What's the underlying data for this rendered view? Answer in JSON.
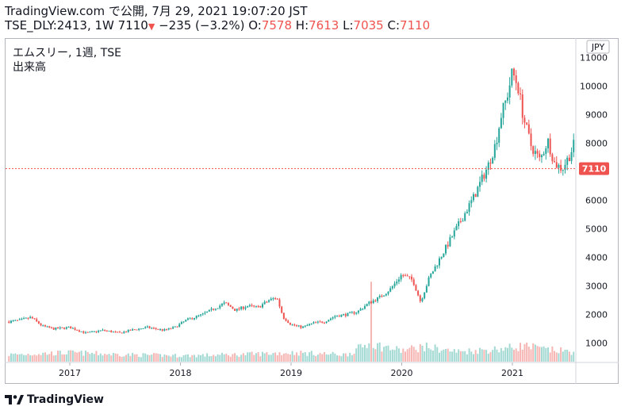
{
  "header": {
    "line1": "TradingView.com で公開, 7月 29, 2021 19:07:20 JST",
    "symbol_info": "TSE_DLY:2413, 1W 7110",
    "change": "−235 (−3.2%)",
    "open_label": "O:",
    "open": "7578",
    "high_label": "H:",
    "high": "7613",
    "low_label": "L:",
    "low": "7035",
    "close_label": "C:",
    "close": "7110"
  },
  "legend": {
    "title": "エムスリー, 1週, TSE",
    "volume": "出来高"
  },
  "logo": {
    "text": "TradingView",
    "icon": "tradingview-logo-icon"
  },
  "colors": {
    "up": "#26a69a",
    "down": "#ef5350",
    "vol_up": "#a3d9d3",
    "vol_down": "#f5b6b4",
    "last_price": "#ef5350"
  },
  "chart_data": {
    "type": "candlestick",
    "currency": "JPY",
    "y_ticks": [
      1000,
      2000,
      3000,
      4000,
      5000,
      6000,
      7000,
      8000,
      9000,
      10000,
      11000
    ],
    "y_tick_labels": [
      "1000",
      "2000",
      "3000",
      "4000",
      "5000",
      "6000",
      "7000",
      "8000",
      "9000",
      "10000",
      "11000"
    ],
    "ylim": [
      0,
      11000
    ],
    "x_ticks": [
      2017,
      2018,
      2019,
      2020,
      2021
    ],
    "x_tick_labels": [
      "2017",
      "2018",
      "2019",
      "2020",
      "2021"
    ],
    "xlim": [
      2016.45,
      2021.75
    ],
    "last_price": 7110,
    "last_price_label": "7110",
    "price_path": [
      [
        2016.45,
        1750
      ],
      [
        2016.55,
        1800
      ],
      [
        2016.65,
        1900
      ],
      [
        2016.75,
        1600
      ],
      [
        2016.85,
        1500
      ],
      [
        2017.0,
        1550
      ],
      [
        2017.15,
        1350
      ],
      [
        2017.3,
        1450
      ],
      [
        2017.45,
        1350
      ],
      [
        2017.55,
        1450
      ],
      [
        2017.7,
        1550
      ],
      [
        2017.85,
        1450
      ],
      [
        2017.95,
        1550
      ],
      [
        2018.05,
        1800
      ],
      [
        2018.2,
        2000
      ],
      [
        2018.3,
        2200
      ],
      [
        2018.4,
        2400
      ],
      [
        2018.5,
        2150
      ],
      [
        2018.6,
        2300
      ],
      [
        2018.7,
        2250
      ],
      [
        2018.8,
        2500
      ],
      [
        2018.87,
        2600
      ],
      [
        2018.93,
        1900
      ],
      [
        2019.0,
        1650
      ],
      [
        2019.1,
        1550
      ],
      [
        2019.2,
        1700
      ],
      [
        2019.3,
        1750
      ],
      [
        2019.4,
        1950
      ],
      [
        2019.5,
        2000
      ],
      [
        2019.6,
        2100
      ],
      [
        2019.7,
        2400
      ],
      [
        2019.8,
        2600
      ],
      [
        2019.9,
        2900
      ],
      [
        2020.0,
        3400
      ],
      [
        2020.1,
        3200
      ],
      [
        2020.17,
        2450
      ],
      [
        2020.25,
        3300
      ],
      [
        2020.35,
        4000
      ],
      [
        2020.45,
        4700
      ],
      [
        2020.55,
        5400
      ],
      [
        2020.65,
        6100
      ],
      [
        2020.72,
        6700
      ],
      [
        2020.78,
        7200
      ],
      [
        2020.85,
        8000
      ],
      [
        2020.9,
        9000
      ],
      [
        2020.95,
        9600
      ],
      [
        2021.0,
        10500
      ],
      [
        2021.05,
        10000
      ],
      [
        2021.1,
        8900
      ],
      [
        2021.17,
        7900
      ],
      [
        2021.25,
        7400
      ],
      [
        2021.32,
        8100
      ],
      [
        2021.38,
        7300
      ],
      [
        2021.45,
        7100
      ],
      [
        2021.52,
        7600
      ],
      [
        2021.56,
        8000
      ],
      [
        2021.6,
        7500
      ],
      [
        2021.65,
        7110
      ]
    ],
    "volume_path": [
      [
        2016.45,
        0.35
      ],
      [
        2017.0,
        0.45
      ],
      [
        2017.5,
        0.35
      ],
      [
        2018.0,
        0.3
      ],
      [
        2018.5,
        0.35
      ],
      [
        2019.0,
        0.45
      ],
      [
        2019.5,
        0.35
      ],
      [
        2019.7,
        0.9
      ],
      [
        2020.0,
        0.55
      ],
      [
        2020.2,
        0.75
      ],
      [
        2020.5,
        0.5
      ],
      [
        2020.8,
        0.6
      ],
      [
        2021.0,
        0.7
      ],
      [
        2021.1,
        0.8
      ],
      [
        2021.3,
        0.6
      ],
      [
        2021.65,
        0.45
      ]
    ]
  }
}
